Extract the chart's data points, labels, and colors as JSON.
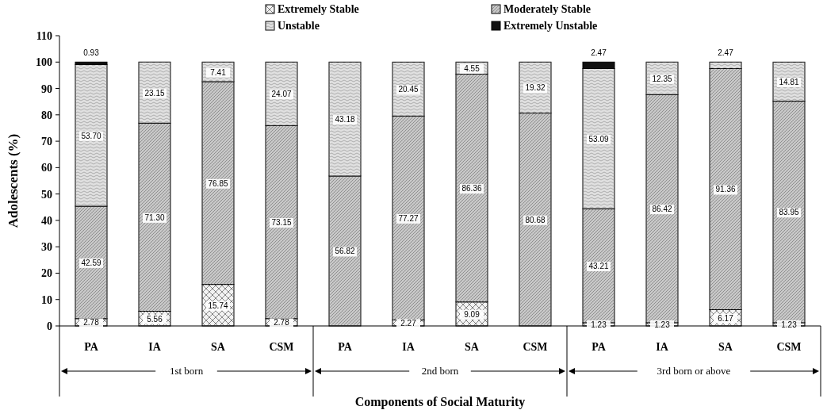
{
  "chart_data": {
    "type": "bar",
    "stacked": true,
    "xlabel": "Components of Social Maturity",
    "ylabel": "Adolescents (%)",
    "categories": [
      "PA",
      "IA",
      "SA",
      "CSM",
      "PA",
      "IA",
      "SA",
      "CSM",
      "PA",
      "IA",
      "SA",
      "CSM"
    ],
    "annotations": [
      "1st born",
      "2nd born",
      "3rd born or above"
    ],
    "ylim": [
      0,
      110
    ],
    "yticks": [
      0,
      10,
      20,
      30,
      40,
      50,
      60,
      70,
      80,
      90,
      100,
      110
    ],
    "legend": "top",
    "grid": false,
    "series": [
      {
        "name": "Extremely Stable",
        "color": "#f2f2f2",
        "values": [
          2.78,
          5.56,
          15.74,
          2.78,
          null,
          2.27,
          9.09,
          null,
          1.23,
          1.23,
          6.17,
          1.23
        ],
        "value_labels": [
          "2.78",
          "5.56",
          "15.74",
          "2.78",
          null,
          "2.27",
          "9.09",
          null,
          "1.23",
          "1.23",
          "6.17",
          "1.23"
        ]
      },
      {
        "name": "Moderately Stable",
        "color": "#c8c8c8",
        "values": [
          42.59,
          71.3,
          76.85,
          73.15,
          56.82,
          77.27,
          86.36,
          80.68,
          43.21,
          86.42,
          91.36,
          83.95
        ],
        "value_labels": [
          "42.59",
          "71.30",
          "76.85",
          "73.15",
          "56.82",
          "77.27",
          "86.36",
          "80.68",
          "43.21",
          "86.42",
          "91.36",
          "83.95"
        ]
      },
      {
        "name": "Unstable",
        "color": "#e0e0e0",
        "values": [
          53.7,
          23.15,
          7.41,
          24.07,
          43.18,
          20.45,
          4.55,
          19.32,
          53.09,
          12.35,
          2.47,
          14.81
        ],
        "value_labels": [
          "53.70",
          "23.15",
          "7.41",
          "24.07",
          "43.18",
          "20.45",
          "4.55",
          "19.32",
          "53.09",
          "12.35",
          "2.47",
          "14.81"
        ]
      },
      {
        "name": "Extremely Unstable",
        "color": "#111111",
        "values": [
          0.93,
          null,
          null,
          null,
          null,
          null,
          null,
          null,
          2.47,
          null,
          null,
          null
        ],
        "value_labels": [
          "0.93",
          null,
          null,
          null,
          null,
          null,
          null,
          null,
          "2.47",
          null,
          null,
          null
        ]
      }
    ]
  }
}
